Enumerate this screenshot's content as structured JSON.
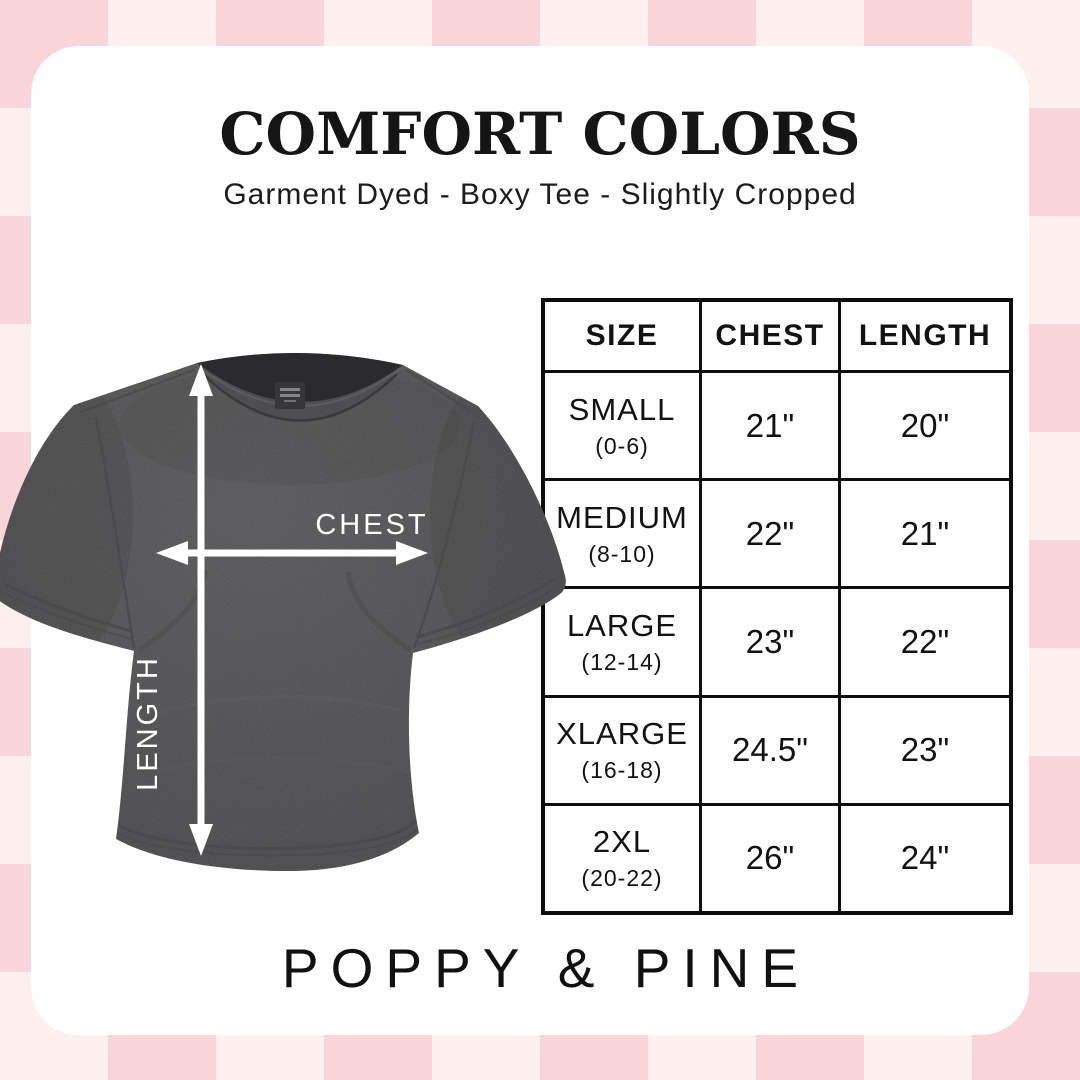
{
  "header": {
    "title": "COMFORT COLORS",
    "subtitle": "Garment Dyed - Boxy Tee - Slightly Cropped"
  },
  "diagram": {
    "chest_label": "CHEST",
    "length_label": "LENGTH"
  },
  "size_table": {
    "columns": [
      "SIZE",
      "CHEST",
      "LENGTH"
    ],
    "rows": [
      {
        "size": "SMALL",
        "range": "(0-6)",
        "chest": "21\"",
        "length": "20\""
      },
      {
        "size": "MEDIUM",
        "range": "(8-10)",
        "chest": "22\"",
        "length": "21\""
      },
      {
        "size": "LARGE",
        "range": "(12-14)",
        "chest": "23\"",
        "length": "22\""
      },
      {
        "size": "XLARGE",
        "range": "(16-18)",
        "chest": "24.5\"",
        "length": "23\""
      },
      {
        "size": "2XL",
        "range": "(20-22)",
        "chest": "26\"",
        "length": "24\""
      }
    ]
  },
  "footer": {
    "brand": "POPPY & PINE"
  },
  "colors": {
    "checker_light": "#fdf0ee",
    "checker_dark": "#f9d5da",
    "card": "#ffffff",
    "shirt_gray": "#48484a",
    "table_border": "#0d0d0d",
    "text_dark": "#151515",
    "arrow_white": "#ffffff"
  }
}
